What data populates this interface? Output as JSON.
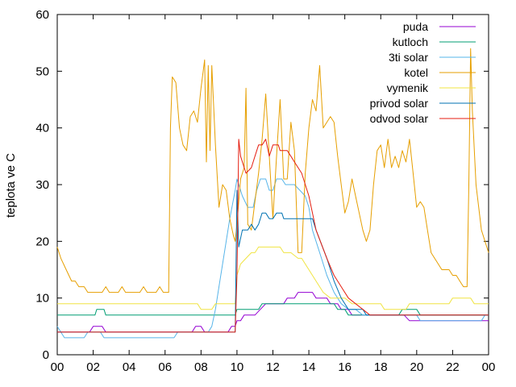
{
  "chart_data": {
    "type": "line",
    "ylabel": "teplota ve C",
    "xlabel": "",
    "ylim": [
      0,
      60
    ],
    "xlim": [
      0,
      24
    ],
    "x_tick_labels": [
      "00",
      "02",
      "04",
      "06",
      "08",
      "10",
      "12",
      "14",
      "16",
      "18",
      "20",
      "22",
      "00"
    ],
    "y_tick_labels": [
      "0",
      "10",
      "20",
      "30",
      "40",
      "50",
      "60"
    ],
    "legend_position": "top-right",
    "series": [
      {
        "name": "puda",
        "color": "#9400d3",
        "points": [
          [
            0,
            4
          ],
          [
            1.8,
            4
          ],
          [
            2.0,
            5
          ],
          [
            2.5,
            5
          ],
          [
            2.7,
            4
          ],
          [
            7.5,
            4
          ],
          [
            7.7,
            5
          ],
          [
            8.0,
            5
          ],
          [
            8.2,
            4
          ],
          [
            9.5,
            4
          ],
          [
            9.7,
            5
          ],
          [
            9.9,
            5
          ],
          [
            10.0,
            6
          ],
          [
            10.2,
            6
          ],
          [
            10.4,
            7
          ],
          [
            11.0,
            7
          ],
          [
            11.3,
            8
          ],
          [
            11.6,
            9
          ],
          [
            12.6,
            9
          ],
          [
            12.8,
            10
          ],
          [
            13.2,
            10
          ],
          [
            13.4,
            11
          ],
          [
            14.2,
            11
          ],
          [
            14.4,
            10
          ],
          [
            15.0,
            10
          ],
          [
            15.2,
            9
          ],
          [
            15.6,
            9
          ],
          [
            15.8,
            8
          ],
          [
            16.2,
            8
          ],
          [
            16.4,
            7
          ],
          [
            19.3,
            7
          ],
          [
            19.6,
            6
          ],
          [
            24,
            6
          ]
        ]
      },
      {
        "name": "kutloch",
        "color": "#009e73",
        "points": [
          [
            0,
            7
          ],
          [
            2.1,
            7
          ],
          [
            2.2,
            8
          ],
          [
            2.6,
            8
          ],
          [
            2.7,
            7
          ],
          [
            9.9,
            7
          ],
          [
            10.0,
            8
          ],
          [
            11.2,
            8
          ],
          [
            11.4,
            9
          ],
          [
            15.4,
            9
          ],
          [
            15.6,
            8
          ],
          [
            16.0,
            8
          ],
          [
            16.2,
            7
          ],
          [
            19.0,
            7
          ],
          [
            19.2,
            8
          ],
          [
            20.0,
            8
          ],
          [
            20.2,
            7
          ],
          [
            24,
            7
          ]
        ]
      },
      {
        "name": "3ti solar",
        "color": "#56b4e9",
        "points": [
          [
            0,
            5
          ],
          [
            0.4,
            3
          ],
          [
            1.5,
            3
          ],
          [
            1.7,
            4
          ],
          [
            2.4,
            4
          ],
          [
            2.6,
            3
          ],
          [
            6.5,
            3
          ],
          [
            6.7,
            4
          ],
          [
            8.4,
            4
          ],
          [
            8.6,
            5
          ],
          [
            8.8,
            8
          ],
          [
            9.0,
            12
          ],
          [
            9.3,
            18
          ],
          [
            9.6,
            24
          ],
          [
            9.9,
            29
          ],
          [
            10.0,
            31
          ],
          [
            10.3,
            28
          ],
          [
            10.6,
            26
          ],
          [
            10.9,
            26
          ],
          [
            11.1,
            29
          ],
          [
            11.3,
            31
          ],
          [
            11.6,
            31
          ],
          [
            11.8,
            29
          ],
          [
            12.0,
            29
          ],
          [
            12.2,
            31
          ],
          [
            12.5,
            31
          ],
          [
            12.7,
            30
          ],
          [
            13.2,
            30
          ],
          [
            13.5,
            29
          ],
          [
            13.8,
            28
          ],
          [
            14.0,
            26
          ],
          [
            14.2,
            22
          ],
          [
            14.6,
            18
          ],
          [
            15.0,
            14
          ],
          [
            15.4,
            11
          ],
          [
            15.8,
            9
          ],
          [
            16.2,
            8
          ],
          [
            16.6,
            8
          ],
          [
            17.0,
            7
          ],
          [
            20.0,
            7
          ],
          [
            20.2,
            6
          ],
          [
            23.6,
            6
          ],
          [
            23.8,
            7
          ],
          [
            24,
            7
          ]
        ]
      },
      {
        "name": "kotel",
        "color": "#e69f00",
        "points": [
          [
            0,
            19
          ],
          [
            0.2,
            17
          ],
          [
            0.5,
            15
          ],
          [
            0.8,
            13
          ],
          [
            1.0,
            13
          ],
          [
            1.2,
            12
          ],
          [
            1.5,
            12
          ],
          [
            1.7,
            11
          ],
          [
            2.5,
            11
          ],
          [
            2.7,
            12
          ],
          [
            2.9,
            11
          ],
          [
            3.4,
            11
          ],
          [
            3.6,
            12
          ],
          [
            3.8,
            11
          ],
          [
            4.6,
            11
          ],
          [
            4.8,
            12
          ],
          [
            5.0,
            11
          ],
          [
            5.5,
            11
          ],
          [
            5.7,
            12
          ],
          [
            5.9,
            11
          ],
          [
            6.2,
            11
          ],
          [
            6.3,
            40
          ],
          [
            6.4,
            49
          ],
          [
            6.6,
            48
          ],
          [
            6.8,
            40
          ],
          [
            7.0,
            37
          ],
          [
            7.2,
            36
          ],
          [
            7.4,
            42
          ],
          [
            7.6,
            43
          ],
          [
            7.8,
            41
          ],
          [
            8.0,
            47
          ],
          [
            8.2,
            52
          ],
          [
            8.3,
            34
          ],
          [
            8.4,
            51
          ],
          [
            8.5,
            36
          ],
          [
            8.6,
            51
          ],
          [
            8.8,
            37
          ],
          [
            9.0,
            26
          ],
          [
            9.2,
            30
          ],
          [
            9.4,
            29
          ],
          [
            9.6,
            24
          ],
          [
            9.8,
            21
          ],
          [
            9.9,
            20
          ],
          [
            10.0,
            23
          ],
          [
            10.2,
            31
          ],
          [
            10.4,
            33
          ],
          [
            10.5,
            47
          ],
          [
            10.6,
            23
          ],
          [
            10.8,
            22
          ],
          [
            11.0,
            27
          ],
          [
            11.2,
            32
          ],
          [
            11.4,
            38
          ],
          [
            11.6,
            46
          ],
          [
            11.8,
            35
          ],
          [
            12.0,
            24
          ],
          [
            12.2,
            35
          ],
          [
            12.4,
            45
          ],
          [
            12.6,
            31
          ],
          [
            12.8,
            31
          ],
          [
            13.0,
            41
          ],
          [
            13.2,
            36
          ],
          [
            13.4,
            18
          ],
          [
            13.6,
            18
          ],
          [
            13.8,
            32
          ],
          [
            14.0,
            40
          ],
          [
            14.2,
            45
          ],
          [
            14.4,
            43
          ],
          [
            14.6,
            51
          ],
          [
            14.8,
            40
          ],
          [
            15.0,
            41
          ],
          [
            15.2,
            42
          ],
          [
            15.4,
            41
          ],
          [
            15.6,
            35
          ],
          [
            15.8,
            30
          ],
          [
            16.0,
            25
          ],
          [
            16.2,
            27
          ],
          [
            16.4,
            31
          ],
          [
            16.6,
            28
          ],
          [
            16.8,
            25
          ],
          [
            17.0,
            22
          ],
          [
            17.2,
            20
          ],
          [
            17.4,
            22
          ],
          [
            17.6,
            30
          ],
          [
            17.8,
            36
          ],
          [
            18.0,
            37
          ],
          [
            18.2,
            33
          ],
          [
            18.4,
            38
          ],
          [
            18.6,
            33
          ],
          [
            18.8,
            35
          ],
          [
            19.0,
            33
          ],
          [
            19.2,
            36
          ],
          [
            19.4,
            34
          ],
          [
            19.6,
            38
          ],
          [
            19.8,
            32
          ],
          [
            20.0,
            26
          ],
          [
            20.2,
            27
          ],
          [
            20.4,
            26
          ],
          [
            20.6,
            22
          ],
          [
            20.8,
            18
          ],
          [
            21.0,
            17
          ],
          [
            21.2,
            16
          ],
          [
            21.4,
            15
          ],
          [
            21.8,
            15
          ],
          [
            22.0,
            14
          ],
          [
            22.2,
            14
          ],
          [
            22.4,
            13
          ],
          [
            22.6,
            12
          ],
          [
            22.8,
            12
          ],
          [
            22.9,
            30
          ],
          [
            23.0,
            54
          ],
          [
            23.1,
            43
          ],
          [
            23.3,
            30
          ],
          [
            23.6,
            22
          ],
          [
            24.0,
            18
          ]
        ]
      },
      {
        "name": "vymenik",
        "color": "#f0e442",
        "points": [
          [
            0,
            9
          ],
          [
            7.8,
            9
          ],
          [
            8.0,
            8
          ],
          [
            8.6,
            8
          ],
          [
            8.8,
            9
          ],
          [
            9.9,
            9
          ],
          [
            10.0,
            14
          ],
          [
            10.2,
            16
          ],
          [
            10.5,
            17
          ],
          [
            10.8,
            18
          ],
          [
            11.0,
            18
          ],
          [
            11.2,
            19
          ],
          [
            12.4,
            19
          ],
          [
            12.6,
            18
          ],
          [
            13.0,
            18
          ],
          [
            13.4,
            17
          ],
          [
            13.6,
            17
          ],
          [
            14.0,
            15
          ],
          [
            14.4,
            13
          ],
          [
            14.8,
            11
          ],
          [
            15.2,
            10
          ],
          [
            16.0,
            10
          ],
          [
            16.4,
            9
          ],
          [
            18.0,
            9
          ],
          [
            18.2,
            8
          ],
          [
            19.4,
            8
          ],
          [
            19.6,
            9
          ],
          [
            21.8,
            9
          ],
          [
            22.0,
            10
          ],
          [
            23.0,
            10
          ],
          [
            23.2,
            9
          ],
          [
            24,
            9
          ]
        ]
      },
      {
        "name": "privod solar",
        "color": "#0072b2",
        "points": [
          [
            0,
            4
          ],
          [
            9.9,
            4
          ],
          [
            10.0,
            29
          ],
          [
            10.1,
            19
          ],
          [
            10.3,
            22
          ],
          [
            10.6,
            22
          ],
          [
            10.8,
            23
          ],
          [
            11.0,
            22
          ],
          [
            11.2,
            23
          ],
          [
            11.4,
            25
          ],
          [
            11.6,
            25
          ],
          [
            11.8,
            24
          ],
          [
            12.0,
            24
          ],
          [
            12.2,
            25
          ],
          [
            12.5,
            25
          ],
          [
            12.6,
            24
          ],
          [
            14.2,
            24
          ],
          [
            14.4,
            22
          ],
          [
            15.0,
            17
          ],
          [
            15.4,
            13
          ],
          [
            15.8,
            10
          ],
          [
            16.2,
            8
          ],
          [
            17.0,
            8
          ],
          [
            17.2,
            7
          ],
          [
            24,
            7
          ]
        ]
      },
      {
        "name": "odvod solar",
        "color": "#e51e10",
        "points": [
          [
            0,
            4
          ],
          [
            9.9,
            4
          ],
          [
            10.0,
            14
          ],
          [
            10.1,
            38
          ],
          [
            10.2,
            35
          ],
          [
            10.5,
            32
          ],
          [
            10.8,
            33
          ],
          [
            11.0,
            35
          ],
          [
            11.2,
            37
          ],
          [
            11.4,
            37
          ],
          [
            11.6,
            38
          ],
          [
            11.8,
            35
          ],
          [
            12.0,
            37
          ],
          [
            12.3,
            37
          ],
          [
            12.4,
            36
          ],
          [
            12.8,
            36
          ],
          [
            13.0,
            35
          ],
          [
            13.2,
            34
          ],
          [
            13.6,
            32
          ],
          [
            14.0,
            28
          ],
          [
            14.4,
            22
          ],
          [
            15.0,
            17
          ],
          [
            15.4,
            14
          ],
          [
            15.8,
            12
          ],
          [
            16.2,
            10
          ],
          [
            17.0,
            8
          ],
          [
            17.4,
            7
          ],
          [
            24,
            7
          ]
        ]
      }
    ]
  }
}
